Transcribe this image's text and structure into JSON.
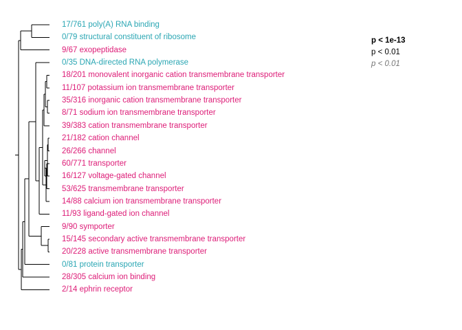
{
  "colors": {
    "enriched": "#dd1c77",
    "depleted": "#2aa6b3",
    "tree": "#000000"
  },
  "terms": [
    {
      "text": "17/761 poly(A) RNA binding",
      "direction": "depleted"
    },
    {
      "text": "0/79 structural constituent of ribosome",
      "direction": "depleted"
    },
    {
      "text": "9/67 exopeptidase",
      "direction": "enriched"
    },
    {
      "text": "0/35 DNA-directed RNA polymerase",
      "direction": "depleted"
    },
    {
      "text": "18/201 monovalent inorganic cation transmembrane transporter",
      "direction": "enriched"
    },
    {
      "text": "11/107 potassium ion transmembrane transporter",
      "direction": "enriched"
    },
    {
      "text": "35/316 inorganic cation transmembrane transporter",
      "direction": "enriched"
    },
    {
      "text": "8/71 sodium ion transmembrane transporter",
      "direction": "enriched"
    },
    {
      "text": "39/383 cation transmembrane transporter",
      "direction": "enriched"
    },
    {
      "text": "21/182 cation channel",
      "direction": "enriched"
    },
    {
      "text": "26/266 channel",
      "direction": "enriched"
    },
    {
      "text": "60/771 transporter",
      "direction": "enriched"
    },
    {
      "text": "16/127 voltage-gated channel",
      "direction": "enriched"
    },
    {
      "text": "53/625 transmembrane transporter",
      "direction": "enriched"
    },
    {
      "text": "14/88 calcium ion transmembrane transporter",
      "direction": "enriched"
    },
    {
      "text": "11/93 ligand-gated ion channel",
      "direction": "enriched"
    },
    {
      "text": "9/90 symporter",
      "direction": "enriched"
    },
    {
      "text": "15/145 secondary active transmembrane transporter",
      "direction": "enriched"
    },
    {
      "text": "20/228 active transmembrane transporter",
      "direction": "enriched"
    },
    {
      "text": "0/81 protein transporter",
      "direction": "depleted"
    },
    {
      "text": "28/305 calcium ion binding",
      "direction": "enriched"
    },
    {
      "text": "2/14 ephrin receptor",
      "direction": "enriched"
    }
  ],
  "legend": {
    "strong": "p < 1e-13",
    "medium": "p < 0.01",
    "weak": "p < 0.01"
  }
}
